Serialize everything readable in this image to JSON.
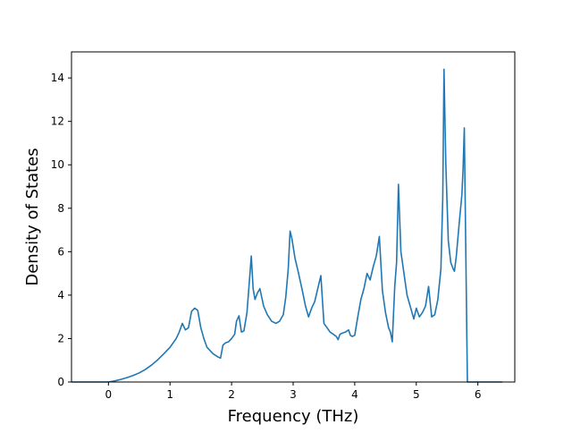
{
  "colors": {
    "line": "#1f77b4",
    "axis": "#000000",
    "background": "#ffffff"
  },
  "chart_data": {
    "type": "line",
    "title": "",
    "xlabel": "Frequency (THz)",
    "ylabel": "Density of States",
    "xlim": [
      -0.6,
      6.6
    ],
    "ylim": [
      0,
      15.2
    ],
    "xticks": [
      0,
      1,
      2,
      3,
      4,
      5,
      6
    ],
    "yticks": [
      0,
      2,
      4,
      6,
      8,
      10,
      12,
      14
    ],
    "grid": false,
    "legend": "none",
    "series": [
      {
        "x": [
          -0.6,
          -0.3,
          0.0,
          0.1,
          0.2,
          0.3,
          0.4,
          0.5,
          0.6,
          0.7,
          0.8,
          0.9,
          1.0,
          1.1,
          1.15,
          1.2,
          1.25,
          1.3,
          1.35,
          1.4,
          1.45,
          1.5,
          1.55,
          1.6,
          1.7,
          1.78,
          1.82,
          1.86,
          1.9,
          1.95,
          2.0,
          2.05,
          2.08,
          2.12,
          2.16,
          2.2,
          2.25,
          2.28,
          2.32,
          2.35,
          2.38,
          2.42,
          2.46,
          2.52,
          2.58,
          2.65,
          2.72,
          2.78,
          2.84,
          2.88,
          2.92,
          2.95,
          2.98,
          3.03,
          3.08,
          3.15,
          3.2,
          3.25,
          3.3,
          3.35,
          3.4,
          3.45,
          3.5,
          3.55,
          3.6,
          3.65,
          3.7,
          3.73,
          3.76,
          3.8,
          3.85,
          3.9,
          3.93,
          3.96,
          4.0,
          4.05,
          4.1,
          4.15,
          4.2,
          4.25,
          4.3,
          4.35,
          4.4,
          4.45,
          4.5,
          4.55,
          4.58,
          4.61,
          4.65,
          4.68,
          4.71,
          4.75,
          4.8,
          4.85,
          4.9,
          4.93,
          4.96,
          5.0,
          5.05,
          5.1,
          5.15,
          5.2,
          5.25,
          5.3,
          5.35,
          5.4,
          5.43,
          5.45,
          5.48,
          5.52,
          5.56,
          5.6,
          5.62,
          5.65,
          5.7,
          5.74,
          5.76,
          5.78,
          5.8,
          5.83,
          6.0,
          6.2,
          6.4
        ],
        "y": [
          0.0,
          0.0,
          0.0,
          0.05,
          0.12,
          0.2,
          0.3,
          0.42,
          0.58,
          0.78,
          1.02,
          1.3,
          1.6,
          2.0,
          2.3,
          2.7,
          2.4,
          2.5,
          3.25,
          3.4,
          3.3,
          2.5,
          2.0,
          1.6,
          1.3,
          1.15,
          1.1,
          1.7,
          1.8,
          1.85,
          2.0,
          2.2,
          2.8,
          3.05,
          2.3,
          2.35,
          3.2,
          4.3,
          5.8,
          4.3,
          3.8,
          4.1,
          4.3,
          3.5,
          3.1,
          2.8,
          2.7,
          2.8,
          3.1,
          3.9,
          5.2,
          6.95,
          6.6,
          5.7,
          5.1,
          4.2,
          3.5,
          3.0,
          3.4,
          3.7,
          4.3,
          4.9,
          2.7,
          2.5,
          2.3,
          2.2,
          2.1,
          1.95,
          2.2,
          2.25,
          2.3,
          2.4,
          2.15,
          2.1,
          2.15,
          3.0,
          3.8,
          4.3,
          5.0,
          4.7,
          5.3,
          5.8,
          6.7,
          4.2,
          3.2,
          2.5,
          2.3,
          1.85,
          4.4,
          5.5,
          9.1,
          6.0,
          5.0,
          4.0,
          3.5,
          3.2,
          2.9,
          3.4,
          3.0,
          3.2,
          3.5,
          4.4,
          3.0,
          3.1,
          3.8,
          5.2,
          8.5,
          14.4,
          10.0,
          6.5,
          5.5,
          5.2,
          5.1,
          5.8,
          7.4,
          8.6,
          9.8,
          11.7,
          7.0,
          0.0,
          0.0,
          0.0,
          0.0
        ]
      }
    ]
  }
}
